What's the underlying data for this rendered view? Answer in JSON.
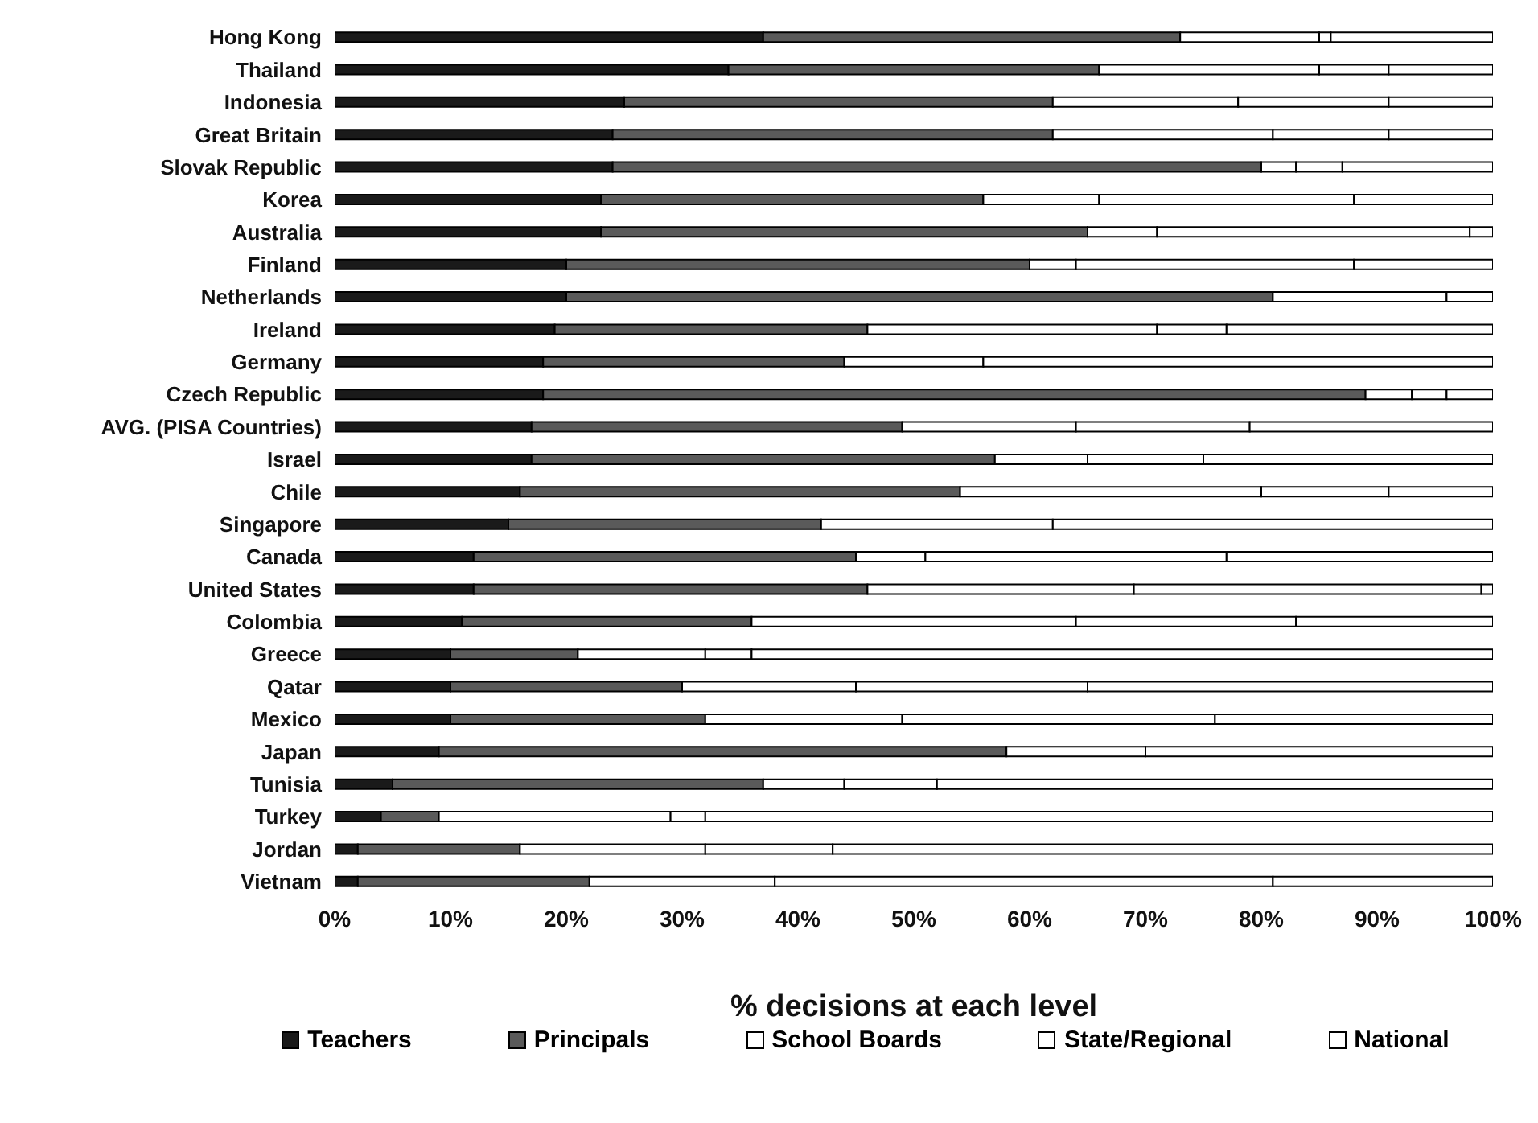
{
  "chart_data": {
    "type": "bar",
    "orientation": "horizontal",
    "stacked": true,
    "xlabel": "% decisions at each level",
    "categories": [
      "Hong Kong",
      "Thailand",
      "Indonesia",
      "Great Britain",
      "Slovak Republic",
      "Korea",
      "Australia",
      "Finland",
      "Netherlands",
      "Ireland",
      "Germany",
      "Czech Republic",
      "AVG. (PISA Countries)",
      "Israel",
      "Chile",
      "Singapore",
      "Canada",
      "United States",
      "Colombia",
      "Greece",
      "Qatar",
      "Mexico",
      "Japan",
      "Tunisia",
      "Turkey",
      "Jordan",
      "Vietnam"
    ],
    "series": [
      {
        "name": "Teachers",
        "color": "#1a1a1a",
        "values": [
          37,
          34,
          25,
          24,
          24,
          23,
          23,
          20,
          20,
          19,
          18,
          18,
          17,
          17,
          16,
          15,
          12,
          12,
          11,
          10,
          10,
          10,
          9,
          5,
          4,
          2,
          2
        ]
      },
      {
        "name": "Principals",
        "color": "#5a5a5a",
        "values": [
          36,
          32,
          37,
          38,
          56,
          33,
          42,
          40,
          61,
          27,
          26,
          71,
          32,
          40,
          38,
          27,
          33,
          34,
          25,
          11,
          20,
          22,
          49,
          32,
          5,
          14,
          20
        ]
      },
      {
        "name": "School Boards",
        "color": "#ffffff",
        "values": [
          12,
          19,
          16,
          19,
          3,
          10,
          6,
          4,
          15,
          25,
          12,
          4,
          15,
          8,
          26,
          20,
          6,
          23,
          28,
          11,
          15,
          17,
          12,
          7,
          20,
          16,
          16
        ]
      },
      {
        "name": "State/Regional",
        "color": "#ffffff",
        "values": [
          1,
          6,
          13,
          10,
          4,
          22,
          27,
          24,
          0,
          6,
          0,
          3,
          15,
          10,
          11,
          0,
          26,
          30,
          19,
          4,
          20,
          27,
          0,
          8,
          3,
          11,
          43
        ]
      },
      {
        "name": "National",
        "color": "#ffffff",
        "values": [
          14,
          9,
          9,
          9,
          13,
          12,
          2,
          12,
          4,
          23,
          44,
          4,
          21,
          25,
          9,
          38,
          23,
          1,
          17,
          64,
          35,
          24,
          30,
          48,
          68,
          57,
          19
        ]
      }
    ],
    "xlim": [
      0,
      100
    ],
    "xticks": [
      {
        "value": 0,
        "label": "0%"
      },
      {
        "value": 10,
        "label": "10%"
      },
      {
        "value": 20,
        "label": "20%"
      },
      {
        "value": 30,
        "label": "30%"
      },
      {
        "value": 40,
        "label": "40%"
      },
      {
        "value": 50,
        "label": "50%"
      },
      {
        "value": 60,
        "label": "60%"
      },
      {
        "value": 70,
        "label": "70%"
      },
      {
        "value": 80,
        "label": "80%"
      },
      {
        "value": 90,
        "label": "90%"
      },
      {
        "value": 100,
        "label": "100%"
      }
    ],
    "legend": "bottom",
    "grid": false
  }
}
